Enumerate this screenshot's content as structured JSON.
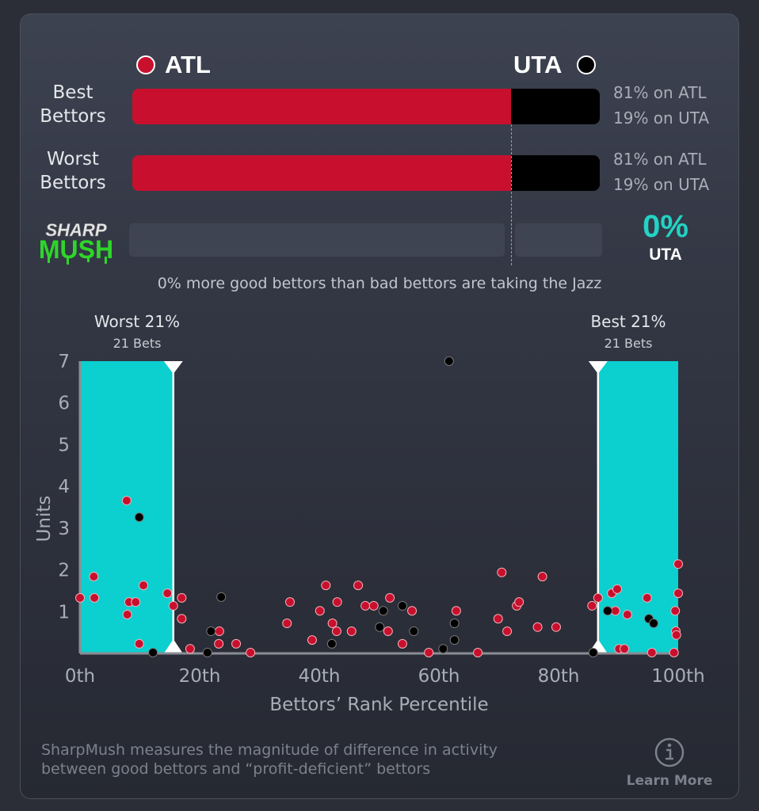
{
  "colors": {
    "atl": "#c8102e",
    "uta": "#000000",
    "band": "#0ccfcf",
    "accent": "#22d3c5"
  },
  "header": {
    "team_left": "ATL",
    "team_right": "UTA"
  },
  "rows": [
    {
      "label_line1": "Best",
      "label_line2": "Bettors",
      "atl_pct": 81,
      "uta_pct": 19,
      "atl_text": "81% on ATL",
      "uta_text": "19% on UTA"
    },
    {
      "label_line1": "Worst",
      "label_line2": "Bettors",
      "atl_pct": 81,
      "uta_pct": 19,
      "atl_text": "81% on ATL",
      "uta_text": "19% on UTA"
    }
  ],
  "sharpmush": {
    "logo_line1": "SHARP",
    "logo_line2": "MUSH",
    "value": "0%",
    "team": "UTA",
    "note": "0% more good bettors than bad bettors are taking the Jazz"
  },
  "chart_data": {
    "type": "scatter",
    "xlabel": "Bettors’ Rank Percentile",
    "ylabel": "Units",
    "xlim": [
      0,
      100
    ],
    "ylim": [
      0,
      7
    ],
    "x_ticks": [
      "0th",
      "20th",
      "40th",
      "60th",
      "80th",
      "100th"
    ],
    "y_ticks": [
      "1",
      "2",
      "3",
      "4",
      "5",
      "6",
      "7"
    ],
    "bands": [
      {
        "title": "Worst 21%",
        "subtitle": "21 Bets",
        "range": [
          0,
          15.6
        ]
      },
      {
        "title": "Best 21%",
        "subtitle": "21 Bets",
        "range": [
          86.6,
          100
        ]
      }
    ],
    "series": [
      {
        "name": "ATL",
        "color": "#c8102e",
        "points": [
          [
            0,
            1.33
          ],
          [
            2.3,
            1.84
          ],
          [
            2.4,
            1.33
          ],
          [
            7.8,
            3.66
          ],
          [
            7.9,
            0.93
          ],
          [
            8.2,
            1.23
          ],
          [
            9.3,
            1.23
          ],
          [
            10.6,
            1.63
          ],
          [
            9.9,
            0.23
          ],
          [
            14.6,
            1.44
          ],
          [
            15.6,
            1.14
          ],
          [
            17,
            1.33
          ],
          [
            17,
            0.83
          ],
          [
            18.4,
            0.11
          ],
          [
            23.3,
            0.53
          ],
          [
            23.2,
            0.23
          ],
          [
            26.1,
            0.23
          ],
          [
            28.5,
            0.02
          ],
          [
            34.6,
            0.72
          ],
          [
            35.1,
            1.23
          ],
          [
            38.8,
            0.32
          ],
          [
            40.1,
            1.02
          ],
          [
            41.1,
            1.63
          ],
          [
            42.2,
            0.72
          ],
          [
            42.9,
            0.53
          ],
          [
            43,
            1.23
          ],
          [
            45.4,
            0.53
          ],
          [
            46.5,
            1.63
          ],
          [
            47.7,
            1.14
          ],
          [
            49.1,
            1.14
          ],
          [
            51.5,
            0.53
          ],
          [
            51.8,
            1.33
          ],
          [
            53.9,
            0.23
          ],
          [
            55.5,
            1.02
          ],
          [
            58.3,
            0.02
          ],
          [
            62.9,
            1.02
          ],
          [
            66.5,
            0.02
          ],
          [
            69.9,
            0.83
          ],
          [
            70.5,
            1.94
          ],
          [
            71.4,
            0.53
          ],
          [
            73,
            1.14
          ],
          [
            73.4,
            1.23
          ],
          [
            76.5,
            0.63
          ],
          [
            77.3,
            1.84
          ],
          [
            79.6,
            0.63
          ],
          [
            85.6,
            1.14
          ],
          [
            86.6,
            1.33
          ],
          [
            88.9,
            1.44
          ],
          [
            89.5,
            1.02
          ],
          [
            89.8,
            1.54
          ],
          [
            90.1,
            0.11
          ],
          [
            91,
            0.11
          ],
          [
            91.5,
            0.93
          ],
          [
            94.8,
            1.33
          ],
          [
            95.6,
            0.02
          ],
          [
            99.3,
            0.02
          ],
          [
            99.5,
            1.02
          ],
          [
            99.6,
            0.53
          ],
          [
            99.7,
            0.44
          ],
          [
            100,
            1.44
          ],
          [
            100,
            2.14
          ]
        ]
      },
      {
        "name": "UTA",
        "color": "#000000",
        "points": [
          [
            9.9,
            3.26
          ],
          [
            12.2,
            0.02
          ],
          [
            23.6,
            1.35
          ],
          [
            21.9,
            0.53
          ],
          [
            21.3,
            0.02
          ],
          [
            42.1,
            0.23
          ],
          [
            50.1,
            0.63
          ],
          [
            50.7,
            1.02
          ],
          [
            53.9,
            1.14
          ],
          [
            55.8,
            0.53
          ],
          [
            60.7,
            0.11
          ],
          [
            61.7,
            7.0
          ],
          [
            62.6,
            0.32
          ],
          [
            62.6,
            0.72
          ],
          [
            85.8,
            0.02
          ],
          [
            88.2,
            1.02
          ],
          [
            95.1,
            0.83
          ],
          [
            95.9,
            0.72
          ]
        ]
      }
    ]
  },
  "footer": {
    "description_line1": "SharpMush measures the magnitude of difference in activity",
    "description_line2": "between good bettors and “profit-deficient” bettors",
    "learn_more": "Learn More",
    "info_icon": "info-icon"
  }
}
